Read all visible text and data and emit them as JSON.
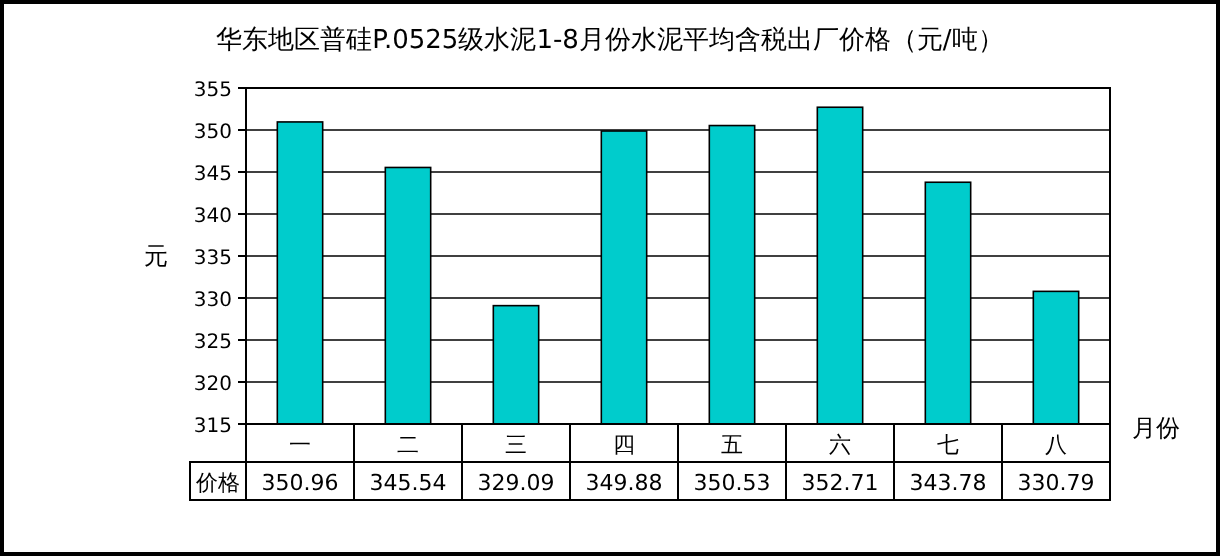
{
  "chart_data": {
    "type": "bar",
    "title": "华东地区普硅P.0525级水泥1-8月份水泥平均含税出厂价格（元/吨）",
    "xlabel": "月份",
    "ylabel": "元",
    "categories": [
      "一",
      "二",
      "三",
      "四",
      "五",
      "六",
      "七",
      "八"
    ],
    "series": [
      {
        "name": "价格",
        "color": "#00cccc",
        "values": [
          350.96,
          345.54,
          329.09,
          349.88,
          350.53,
          352.71,
          343.78,
          330.79
        ]
      }
    ],
    "ylim": [
      315,
      355
    ],
    "yticks": [
      315,
      320,
      325,
      330,
      335,
      340,
      345,
      350,
      355
    ],
    "grid": "y",
    "data_labels": true
  }
}
